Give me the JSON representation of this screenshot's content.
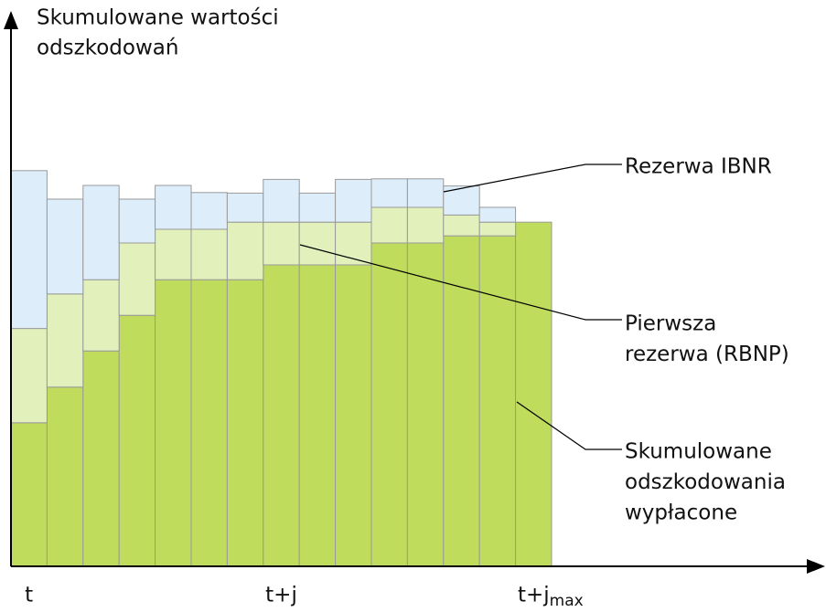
{
  "chart_data": {
    "type": "stacked-bar",
    "y_axis_label": [
      "Skumulowane wartości",
      "odszkodowań"
    ],
    "categories": [
      "t",
      null,
      null,
      null,
      null,
      null,
      null,
      "t+j",
      null,
      null,
      null,
      null,
      null,
      null,
      "t+j"
    ],
    "last_tick_subscript": "max",
    "ylim": [
      0,
      100
    ],
    "series": [
      {
        "name": [
          "Skumulowane",
          "odszkodowania",
          "wypłacone"
        ],
        "color": "#bfdc5c",
        "values": [
          26.2,
          32.7,
          39.3,
          45.8,
          52.3,
          52.3,
          52.3,
          55,
          55,
          55,
          59,
          59,
          60.3,
          60.3,
          62.8
        ]
      },
      {
        "name": [
          "Pierwsza",
          "rezerwa (RBNP)"
        ],
        "color": "#e2f0bc",
        "values": [
          17.2,
          17,
          13,
          13.2,
          9.2,
          9.2,
          10.5,
          7.8,
          7.8,
          7.8,
          6.5,
          6.5,
          3.8,
          2.5,
          null
        ]
      },
      {
        "name": [
          "Rezerwa IBNR"
        ],
        "color": "#ddeefa",
        "values": [
          28.8,
          17.3,
          17.2,
          8,
          8,
          6.7,
          5.3,
          7.8,
          5.3,
          7.8,
          5.2,
          5.2,
          5.3,
          2.7,
          null
        ]
      }
    ]
  }
}
